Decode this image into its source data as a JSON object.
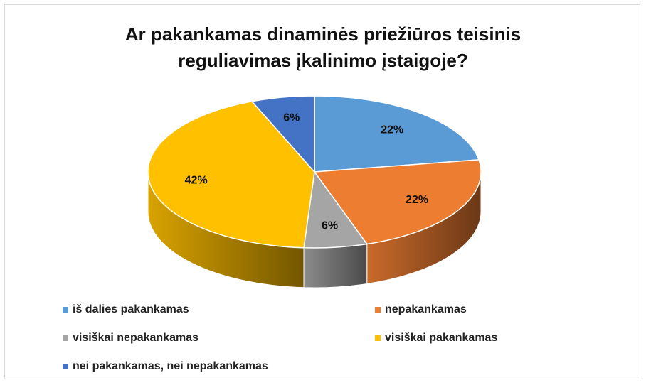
{
  "chart_data": {
    "type": "pie3d",
    "title": "Ar pakankamas dinaminės priežiūros teisinis reguliavimas įkalinimo įstaigoje?",
    "categories": [
      "iš dalies pakankamas",
      "nepakankamas",
      "visiškai nepakankamas",
      "visiškai pakankamas",
      "nei pakankamas, nei nepakankamas"
    ],
    "values": [
      22,
      22,
      6,
      42,
      6
    ],
    "value_labels": [
      "22%",
      "22%",
      "6%",
      "42%",
      "6%"
    ],
    "colors": [
      "#5b9bd5",
      "#ed7d31",
      "#a5a5a5",
      "#ffc000",
      "#4472c4"
    ],
    "legend": "bottom"
  }
}
